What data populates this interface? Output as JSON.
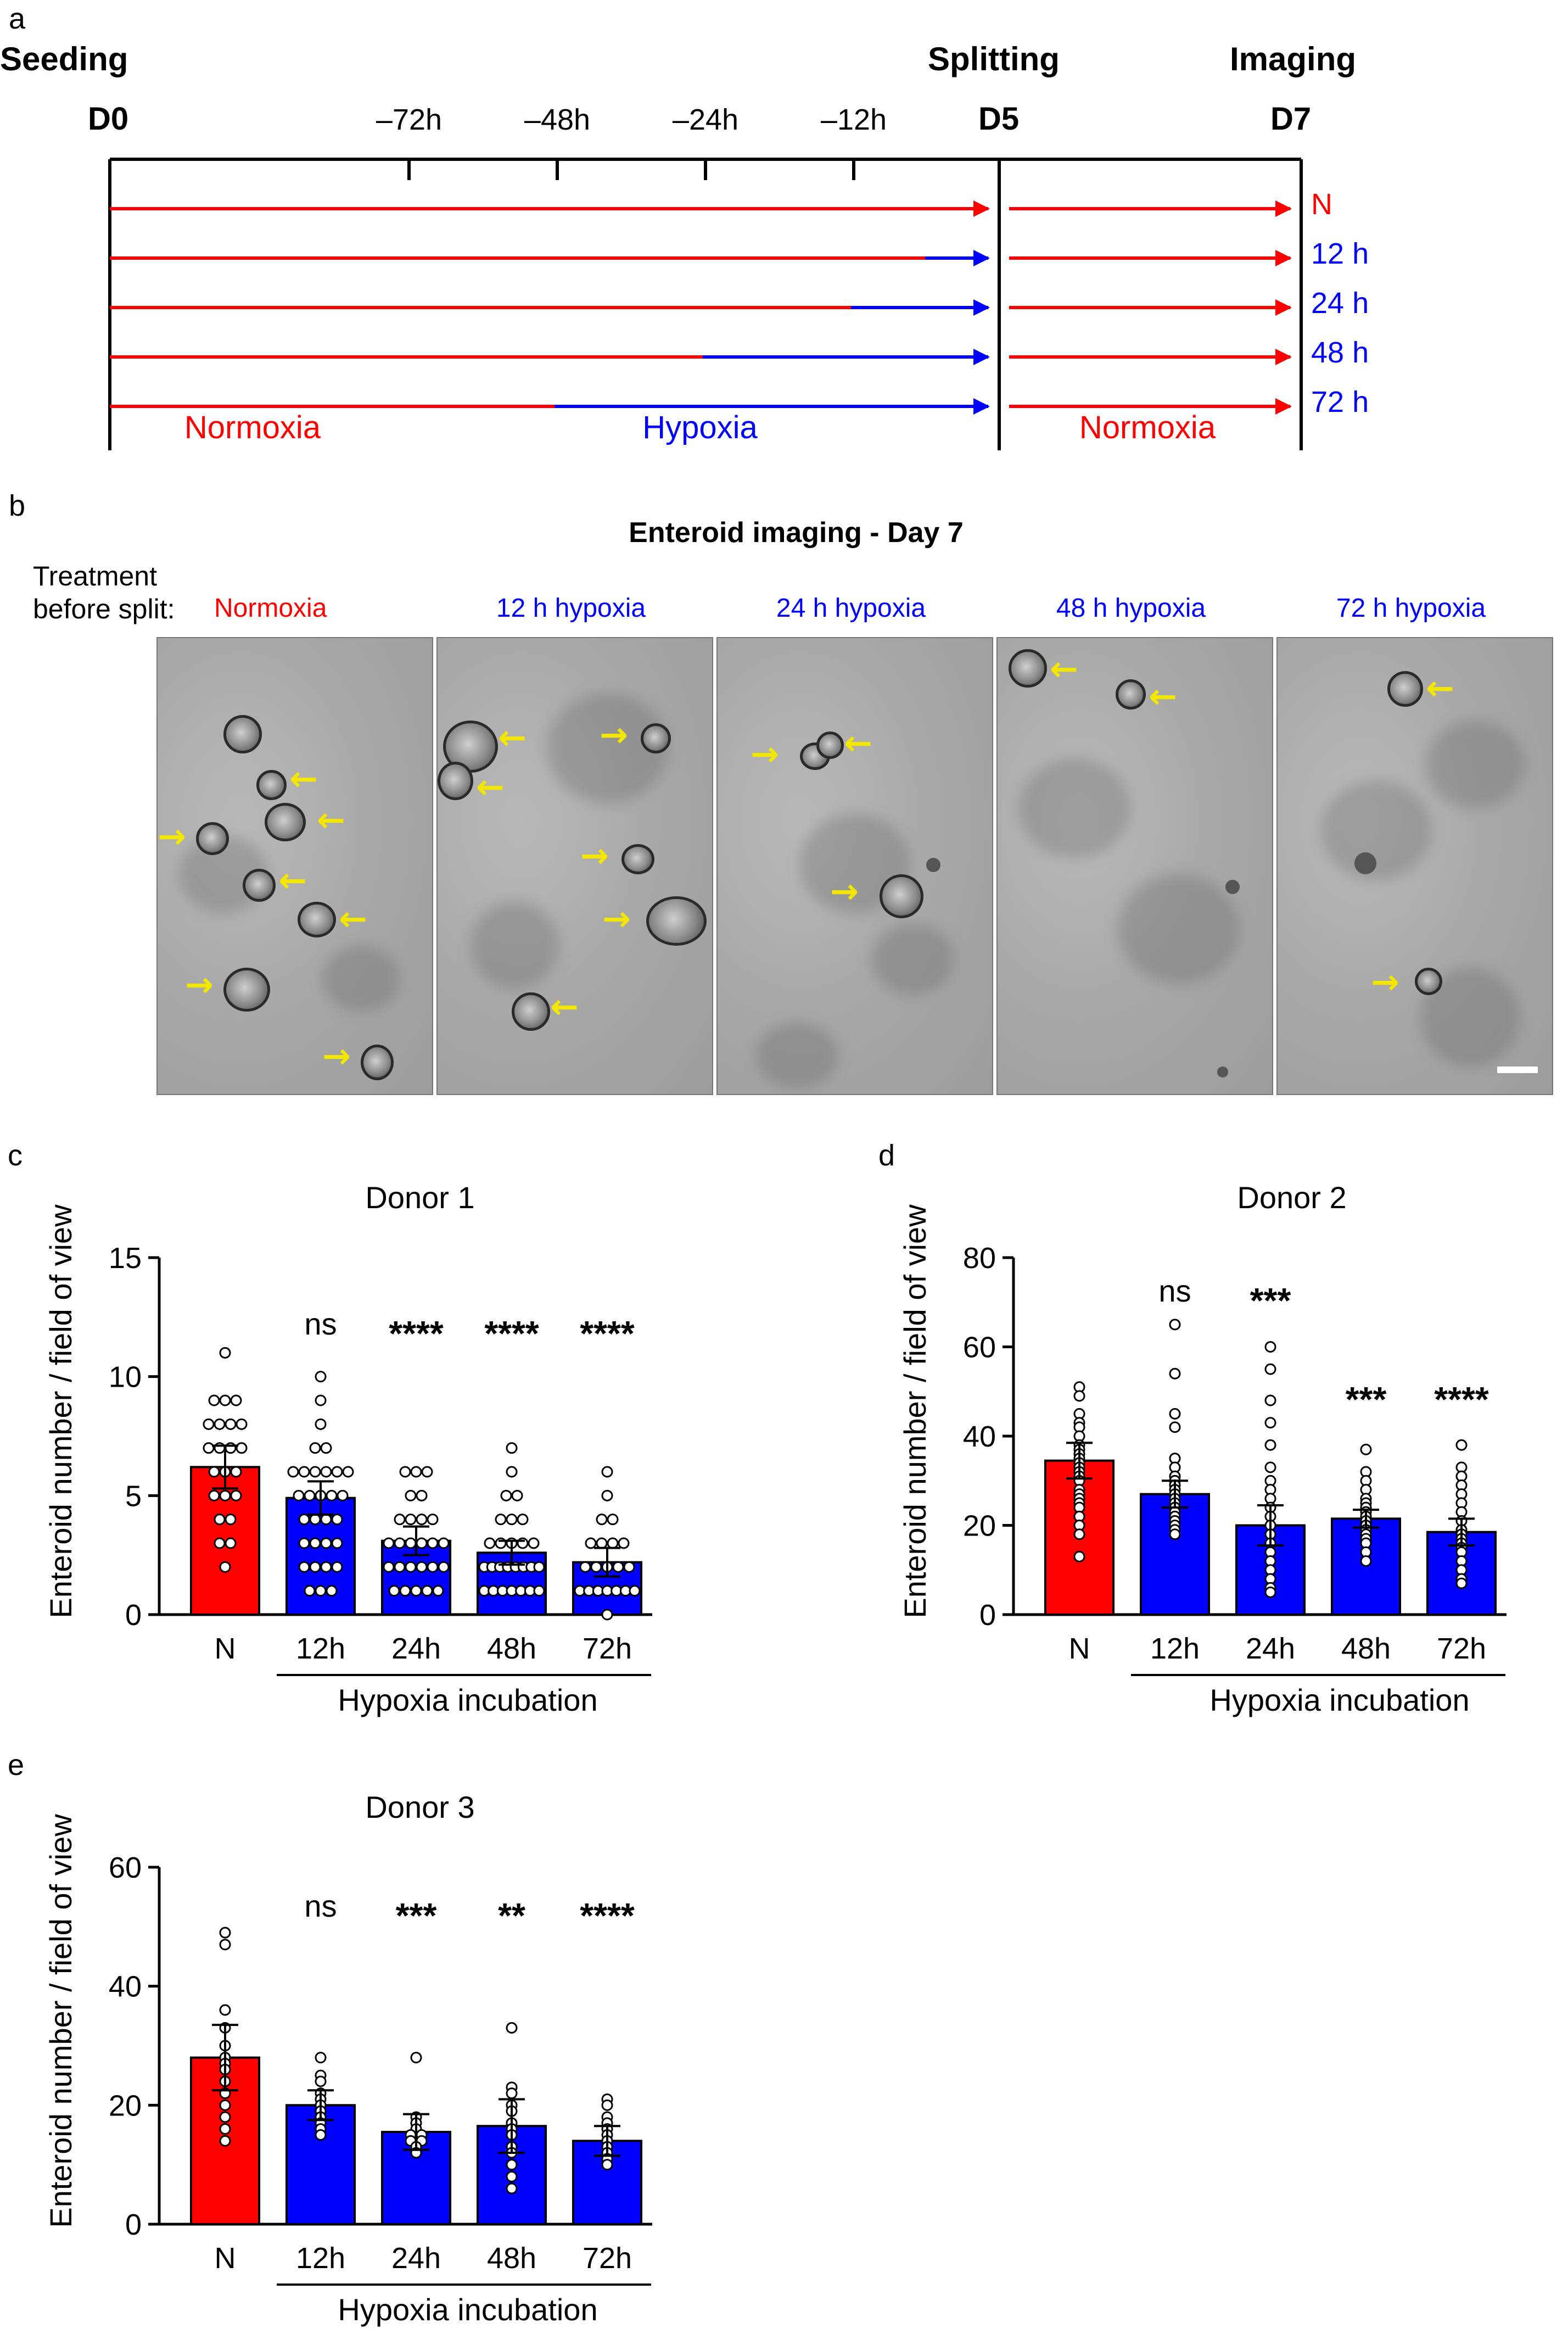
{
  "panel_letters": {
    "a": "a",
    "b": "b",
    "c": "c",
    "d": "d",
    "e": "e"
  },
  "colors": {
    "normoxia": "#ff0000",
    "hypoxia": "#0000ff",
    "arrow": "#f3e600",
    "axis": "#000000"
  },
  "timeline": {
    "phase_labels": {
      "seeding": "Seeding",
      "splitting": "Splitting",
      "imaging": "Imaging"
    },
    "day_labels": {
      "d0": "D0",
      "d5": "D5",
      "d7": "D7"
    },
    "tick_labels": [
      "–72h",
      "–48h",
      "–24h",
      "–12h"
    ],
    "rows": [
      {
        "label": "N",
        "hypoxia_hours": 0,
        "color": "#ff0000"
      },
      {
        "label": "12 h",
        "hypoxia_hours": 12,
        "color": "#0000ff"
      },
      {
        "label": "24 h",
        "hypoxia_hours": 24,
        "color": "#0000ff"
      },
      {
        "label": "48 h",
        "hypoxia_hours": 48,
        "color": "#0000ff"
      },
      {
        "label": "72 h",
        "hypoxia_hours": 72,
        "color": "#0000ff"
      }
    ],
    "bottom_labels": {
      "normoxia_left": "Normoxia",
      "hypoxia": "Hypoxia",
      "normoxia_right": "Normoxia"
    }
  },
  "imaging": {
    "title": "Enteroid imaging - Day 7",
    "treatment_label_line1": "Treatment",
    "treatment_label_line2": "before split:",
    "conditions": [
      "Normoxia",
      "12 h hypoxia",
      "24 h hypoxia",
      "48 h hypoxia",
      "72 h hypoxia"
    ],
    "image_icon": "microscopy-image",
    "arrow_icon": "yellow-arrow-icon"
  },
  "chart_data": [
    {
      "type": "bar",
      "panel": "c",
      "title": "Donor 1",
      "ylabel": "Enteroid number / field of view",
      "xlabel": "Hypoxia incubation",
      "ylim": [
        0,
        15
      ],
      "yticks": [
        0,
        5,
        10,
        15
      ],
      "categories": [
        "N",
        "12h",
        "24h",
        "48h",
        "72h"
      ],
      "values": [
        6.2,
        4.9,
        3.1,
        2.6,
        2.2
      ],
      "errors": [
        0.9,
        0.7,
        0.6,
        0.5,
        0.6
      ],
      "significance": [
        "",
        "ns",
        "****",
        "****",
        "****"
      ],
      "points": [
        [
          11,
          9,
          9,
          9,
          8,
          8,
          8,
          8,
          7,
          7,
          7,
          7,
          6,
          6,
          6,
          5,
          5,
          5,
          4,
          4,
          3,
          3,
          2
        ],
        [
          10,
          9,
          8,
          7,
          7,
          6,
          6,
          6,
          6,
          6,
          6,
          5,
          5,
          5,
          5,
          5,
          4,
          4,
          4,
          4,
          3,
          3,
          3,
          3,
          2,
          2,
          2,
          2,
          1,
          1,
          1
        ],
        [
          6,
          6,
          6,
          5,
          5,
          4,
          4,
          4,
          4,
          3,
          3,
          3,
          3,
          3,
          3,
          2,
          2,
          2,
          2,
          2,
          2,
          1,
          1,
          1,
          1,
          1
        ],
        [
          7,
          6,
          5,
          5,
          4,
          4,
          4,
          3,
          3,
          3,
          3,
          3,
          2,
          2,
          2,
          2,
          2,
          2,
          2,
          2,
          1,
          1,
          1,
          1,
          1,
          1,
          1
        ],
        [
          6,
          5,
          4,
          4,
          3,
          3,
          3,
          3,
          2,
          2,
          2,
          2,
          2,
          1,
          1,
          1,
          1,
          1,
          1,
          1,
          0
        ]
      ]
    },
    {
      "type": "bar",
      "panel": "d",
      "title": "Donor 2",
      "ylabel": "Enteroid number / field of view",
      "xlabel": "Hypoxia incubation",
      "ylim": [
        0,
        80
      ],
      "yticks": [
        0,
        20,
        40,
        60,
        80
      ],
      "categories": [
        "N",
        "12h",
        "24h",
        "48h",
        "72h"
      ],
      "values": [
        34.5,
        27.0,
        20.0,
        21.5,
        18.5
      ],
      "errors": [
        4.0,
        3.0,
        4.5,
        2.0,
        3.0
      ],
      "significance": [
        "",
        "ns",
        "***",
        "***",
        "****"
      ],
      "points": [
        [
          51,
          49,
          45,
          43,
          42,
          40,
          38,
          37,
          36,
          35,
          34,
          33,
          32,
          31,
          30,
          28,
          27,
          26,
          25,
          24,
          22,
          20,
          18,
          13
        ],
        [
          65,
          54,
          45,
          42,
          35,
          33,
          31,
          30,
          29,
          28,
          27,
          26,
          25,
          24,
          23,
          22,
          21,
          20,
          19,
          18
        ],
        [
          60,
          55,
          48,
          43,
          38,
          33,
          30,
          28,
          26,
          24,
          22,
          20,
          18,
          16,
          14,
          12,
          10,
          8,
          6,
          5
        ],
        [
          37,
          32,
          30,
          28,
          26,
          25,
          24,
          23,
          22,
          21,
          20,
          19,
          18,
          17,
          16,
          14,
          12
        ],
        [
          38,
          33,
          31,
          29,
          27,
          25,
          23,
          21,
          19,
          18,
          17,
          16,
          15,
          14,
          12,
          10,
          8,
          7
        ]
      ]
    },
    {
      "type": "bar",
      "panel": "e",
      "title": "Donor 3",
      "ylabel": "Enteroid number / field of view",
      "xlabel": "Hypoxia incubation",
      "ylim": [
        0,
        60
      ],
      "yticks": [
        0,
        20,
        40,
        60
      ],
      "categories": [
        "N",
        "12h",
        "24h",
        "48h",
        "72h"
      ],
      "values": [
        28.0,
        20.0,
        15.5,
        16.5,
        14.0
      ],
      "errors": [
        5.5,
        2.5,
        3.0,
        4.5,
        2.5
      ],
      "significance": [
        "",
        "ns",
        "***",
        "**",
        "****"
      ],
      "points": [
        [
          49,
          47,
          36,
          33,
          30,
          28,
          27,
          26,
          24,
          22,
          20,
          18,
          16,
          14
        ],
        [
          28,
          25,
          24,
          22,
          21,
          20,
          19,
          18,
          17,
          16,
          15
        ],
        [
          28,
          18,
          17,
          16,
          15,
          15,
          14,
          14,
          13,
          12
        ],
        [
          33,
          23,
          22,
          20,
          19,
          17,
          16,
          15,
          13,
          12,
          10,
          8,
          6
        ],
        [
          21,
          20,
          18,
          17,
          16,
          15,
          14,
          13,
          12,
          11,
          10
        ]
      ]
    }
  ]
}
